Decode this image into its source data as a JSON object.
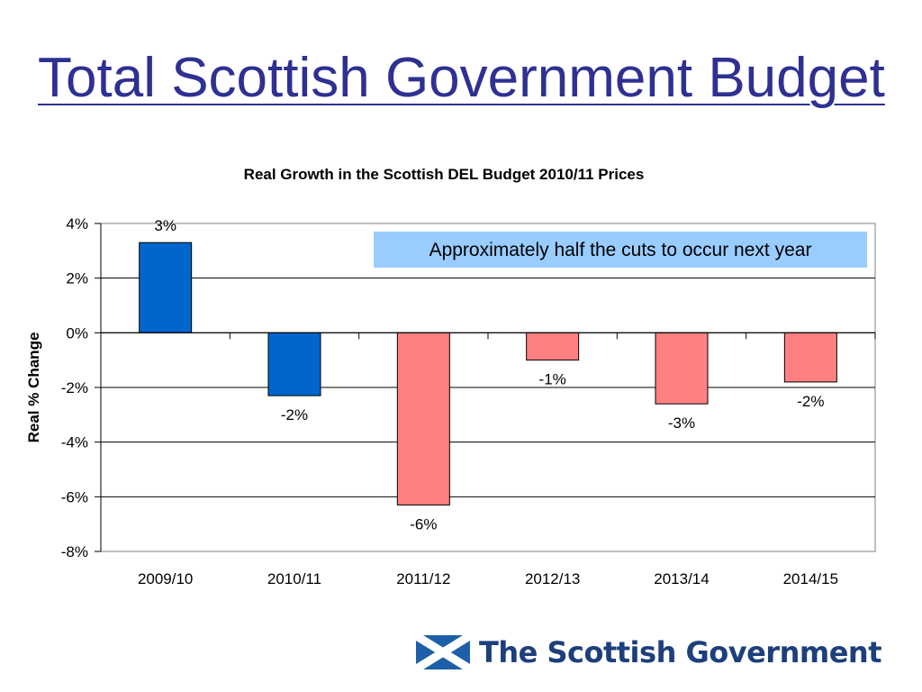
{
  "slide": {
    "title": "Total Scottish Government Budget"
  },
  "logo": {
    "icon": "saltire-flag-icon",
    "text": "The Scottish Government",
    "color": "#1d3f7c"
  },
  "chart_data": {
    "type": "bar",
    "title": "Real Growth in the Scottish DEL Budget 2010/11 Prices",
    "xlabel": "",
    "ylabel": "Real % Change",
    "categories": [
      "2009/10",
      "2010/11",
      "2011/12",
      "2012/13",
      "2013/14",
      "2014/15"
    ],
    "values": [
      3.3,
      -2.3,
      -6.3,
      -1.0,
      -2.6,
      -1.8
    ],
    "data_labels": [
      "3%",
      "-2%",
      "-6%",
      "-1%",
      "-3%",
      "-2%"
    ],
    "bar_colors": [
      "#0066cc",
      "#0066cc",
      "#ff8080",
      "#ff8080",
      "#ff8080",
      "#ff8080"
    ],
    "ylim": [
      -8,
      4
    ],
    "yticks": [
      4,
      2,
      0,
      -2,
      -4,
      -6,
      -8
    ],
    "ytick_labels": [
      "4%",
      "2%",
      "0%",
      "-2%",
      "-4%",
      "-6%",
      "-8%"
    ],
    "grid": true,
    "legend": "none",
    "annotation": {
      "text": "Approximately half the cuts to occur next year",
      "background": "#99ccff",
      "placement": "top-right"
    }
  }
}
